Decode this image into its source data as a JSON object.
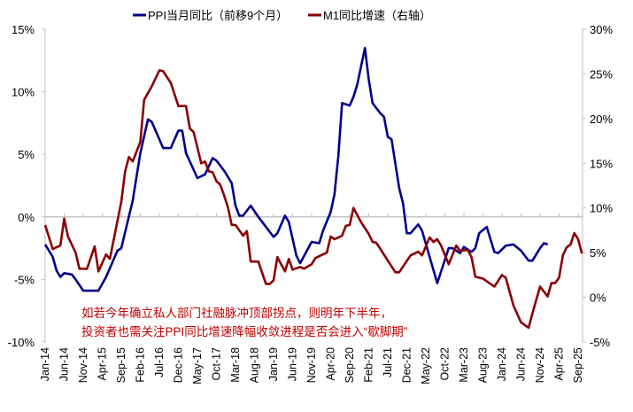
{
  "chart_data": {
    "type": "line",
    "title": "",
    "legend_position": "top",
    "grid": false,
    "x_tick_labels": [
      "Jan-14",
      "Jun-14",
      "Nov-14",
      "Apr-15",
      "Sep-15",
      "Feb-16",
      "Jul-16",
      "Dec-16",
      "May-17",
      "Oct-17",
      "Mar-18",
      "Aug-18",
      "Jan-19",
      "Jun-19",
      "Nov-19",
      "Apr-20",
      "Sep-20",
      "Feb-21",
      "Jul-21",
      "Dec-21",
      "May-22",
      "Oct-22",
      "Mar-23",
      "Aug-23",
      "Jan-24",
      "Jun-24",
      "Nov-24",
      "Apr-25",
      "Sep-25"
    ],
    "x_range": [
      "2014-01",
      "2025-10"
    ],
    "y_left": {
      "ylim": [
        -10,
        15
      ],
      "tick_labels": [
        "-10%",
        "-5%",
        "0%",
        "5%",
        "10%",
        "15%"
      ],
      "ticks": [
        -10,
        -5,
        0,
        5,
        10,
        15
      ]
    },
    "y_right": {
      "ylim": [
        -5,
        30
      ],
      "tick_labels": [
        "-5%",
        "0%",
        "5%",
        "10%",
        "15%",
        "20%",
        "25%",
        "30%"
      ],
      "ticks": [
        -5,
        0,
        5,
        10,
        15,
        20,
        25,
        30
      ]
    },
    "series": [
      {
        "name": "PPI当月同比（前移9个月）",
        "axis": "left",
        "color": "#00008B",
        "points": [
          [
            "2014-01",
            -2.2
          ],
          [
            "2014-03",
            -3.2
          ],
          [
            "2014-04",
            -4.3
          ],
          [
            "2014-05",
            -4.8
          ],
          [
            "2014-06",
            -4.5
          ],
          [
            "2014-08",
            -4.6
          ],
          [
            "2014-09",
            -5.0
          ],
          [
            "2014-11",
            -5.9
          ],
          [
            "2015-03",
            -5.9
          ],
          [
            "2015-05",
            -4.8
          ],
          [
            "2015-08",
            -2.7
          ],
          [
            "2015-09",
            -2.5
          ],
          [
            "2015-12",
            1.3
          ],
          [
            "2016-02",
            5.1
          ],
          [
            "2016-04",
            7.8
          ],
          [
            "2016-05",
            7.6
          ],
          [
            "2016-08",
            5.5
          ],
          [
            "2016-10",
            5.5
          ],
          [
            "2016-12",
            6.9
          ],
          [
            "2017-01",
            6.9
          ],
          [
            "2017-02",
            5.1
          ],
          [
            "2017-05",
            3.1
          ],
          [
            "2017-07",
            3.4
          ],
          [
            "2017-09",
            4.7
          ],
          [
            "2017-10",
            4.5
          ],
          [
            "2017-12",
            3.7
          ],
          [
            "2018-01",
            3.2
          ],
          [
            "2018-02",
            2.7
          ],
          [
            "2018-03",
            0.9
          ],
          [
            "2018-04",
            0.1
          ],
          [
            "2018-05",
            0.1
          ],
          [
            "2018-07",
            0.9
          ],
          [
            "2018-09",
            0.0
          ],
          [
            "2018-10",
            -0.4
          ],
          [
            "2019-01",
            -1.6
          ],
          [
            "2019-02",
            -1.3
          ],
          [
            "2019-04",
            0.1
          ],
          [
            "2019-05",
            -0.4
          ],
          [
            "2019-07",
            -3.1
          ],
          [
            "2019-08",
            -3.7
          ],
          [
            "2019-11",
            -2.0
          ],
          [
            "2020-01",
            -2.1
          ],
          [
            "2020-02",
            -1.1
          ],
          [
            "2020-04",
            0.4
          ],
          [
            "2020-05",
            1.8
          ],
          [
            "2020-06",
            4.8
          ],
          [
            "2020-07",
            9.1
          ],
          [
            "2020-09",
            8.9
          ],
          [
            "2020-10",
            9.6
          ],
          [
            "2020-11",
            10.6
          ],
          [
            "2021-01",
            13.5
          ],
          [
            "2021-02",
            11.0
          ],
          [
            "2021-03",
            9.1
          ],
          [
            "2021-04",
            8.7
          ],
          [
            "2021-05",
            8.3
          ],
          [
            "2021-06",
            8.0
          ],
          [
            "2021-07",
            6.4
          ],
          [
            "2021-08",
            6.2
          ],
          [
            "2021-10",
            2.3
          ],
          [
            "2021-11",
            1.1
          ],
          [
            "2021-12",
            -1.3
          ],
          [
            "2022-01",
            -1.3
          ],
          [
            "2022-03",
            -0.6
          ],
          [
            "2022-04",
            -1.1
          ],
          [
            "2022-08",
            -5.3
          ],
          [
            "2022-11",
            -2.5
          ],
          [
            "2022-12",
            -2.5
          ],
          [
            "2023-02",
            -2.9
          ],
          [
            "2023-03",
            -2.4
          ],
          [
            "2023-05",
            -2.8
          ],
          [
            "2023-06",
            -2.5
          ],
          [
            "2023-07",
            -1.3
          ],
          [
            "2023-09",
            -0.8
          ],
          [
            "2023-11",
            -2.8
          ],
          [
            "2023-12",
            -2.9
          ],
          [
            "2024-02",
            -2.3
          ],
          [
            "2024-04",
            -2.2
          ],
          [
            "2024-06",
            -2.7
          ],
          [
            "2024-08",
            -3.5
          ],
          [
            "2024-09",
            -3.5
          ],
          [
            "2024-11",
            -2.5
          ],
          [
            "2024-12",
            -2.1
          ],
          [
            "2025-01",
            -2.2
          ]
        ]
      },
      {
        "name": "M1同比增速（右轴）",
        "axis": "right",
        "color": "#8B0000",
        "points": [
          [
            "2014-01",
            8.1
          ],
          [
            "2014-03",
            5.4
          ],
          [
            "2014-05",
            5.8
          ],
          [
            "2014-06",
            8.8
          ],
          [
            "2014-07",
            6.8
          ],
          [
            "2014-09",
            5.0
          ],
          [
            "2014-10",
            3.2
          ],
          [
            "2014-12",
            3.2
          ],
          [
            "2015-02",
            5.7
          ],
          [
            "2015-03",
            2.9
          ],
          [
            "2015-05",
            4.8
          ],
          [
            "2015-06",
            4.3
          ],
          [
            "2015-09",
            10.7
          ],
          [
            "2015-10",
            14.1
          ],
          [
            "2015-11",
            15.7
          ],
          [
            "2015-12",
            15.2
          ],
          [
            "2016-02",
            17.4
          ],
          [
            "2016-03",
            22.1
          ],
          [
            "2016-05",
            23.6
          ],
          [
            "2016-07",
            25.4
          ],
          [
            "2016-08",
            25.3
          ],
          [
            "2016-10",
            24.0
          ],
          [
            "2016-12",
            21.4
          ],
          [
            "2017-02",
            21.4
          ],
          [
            "2017-03",
            18.9
          ],
          [
            "2017-04",
            18.5
          ],
          [
            "2017-06",
            15.0
          ],
          [
            "2017-07",
            15.2
          ],
          [
            "2017-08",
            14.1
          ],
          [
            "2017-09",
            14.0
          ],
          [
            "2017-10",
            13.0
          ],
          [
            "2017-11",
            12.6
          ],
          [
            "2017-12",
            11.4
          ],
          [
            "2018-01",
            10.1
          ],
          [
            "2018-02",
            8.1
          ],
          [
            "2018-03",
            8.1
          ],
          [
            "2018-05",
            6.9
          ],
          [
            "2018-06",
            7.4
          ],
          [
            "2018-07",
            4.0
          ],
          [
            "2018-09",
            4.0
          ],
          [
            "2018-11",
            1.5
          ],
          [
            "2018-12",
            1.5
          ],
          [
            "2019-01",
            1.9
          ],
          [
            "2019-02",
            4.5
          ],
          [
            "2019-04",
            2.9
          ],
          [
            "2019-05",
            4.3
          ],
          [
            "2019-06",
            3.1
          ],
          [
            "2019-08",
            3.4
          ],
          [
            "2019-09",
            3.2
          ],
          [
            "2019-11",
            3.7
          ],
          [
            "2019-12",
            4.4
          ],
          [
            "2020-03",
            5.0
          ],
          [
            "2020-04",
            6.8
          ],
          [
            "2020-05",
            6.5
          ],
          [
            "2020-07",
            6.9
          ],
          [
            "2020-08",
            8.0
          ],
          [
            "2020-09",
            8.1
          ],
          [
            "2020-10",
            10.0
          ],
          [
            "2020-12",
            8.4
          ],
          [
            "2021-02",
            7.1
          ],
          [
            "2021-03",
            6.2
          ],
          [
            "2021-04",
            6.1
          ],
          [
            "2021-09",
            2.8
          ],
          [
            "2021-10",
            2.8
          ],
          [
            "2022-01",
            4.7
          ],
          [
            "2022-03",
            5.1
          ],
          [
            "2022-04",
            4.7
          ],
          [
            "2022-06",
            6.7
          ],
          [
            "2022-07",
            6.2
          ],
          [
            "2022-08",
            6.5
          ],
          [
            "2022-09",
            5.8
          ],
          [
            "2022-11",
            3.7
          ],
          [
            "2023-01",
            5.8
          ],
          [
            "2023-02",
            5.2
          ],
          [
            "2023-04",
            5.3
          ],
          [
            "2023-05",
            4.5
          ],
          [
            "2023-06",
            2.3
          ],
          [
            "2023-08",
            2.1
          ],
          [
            "2023-09",
            1.8
          ],
          [
            "2023-11",
            1.2
          ],
          [
            "2024-01",
            2.5
          ],
          [
            "2024-02",
            2.2
          ],
          [
            "2024-04",
            -0.9
          ],
          [
            "2024-06",
            -2.8
          ],
          [
            "2024-08",
            -3.4
          ],
          [
            "2024-09",
            -1.8
          ],
          [
            "2024-11",
            1.2
          ],
          [
            "2025-01",
            0.1
          ],
          [
            "2025-02",
            1.6
          ],
          [
            "2025-03",
            1.6
          ],
          [
            "2025-04",
            2.2
          ],
          [
            "2025-05",
            4.7
          ],
          [
            "2025-06",
            5.6
          ],
          [
            "2025-07",
            5.9
          ],
          [
            "2025-08",
            7.2
          ],
          [
            "2025-09",
            6.5
          ],
          [
            "2025-10",
            4.9
          ]
        ]
      }
    ],
    "annotation": {
      "lines": [
        "如若今年确立私人部门社融脉冲顶部拐点，则明年下半年，",
        "投资者也需关注PPI同比增速降幅收敛进程是否会进入“歇脚期”"
      ],
      "color": "#C00000"
    }
  }
}
